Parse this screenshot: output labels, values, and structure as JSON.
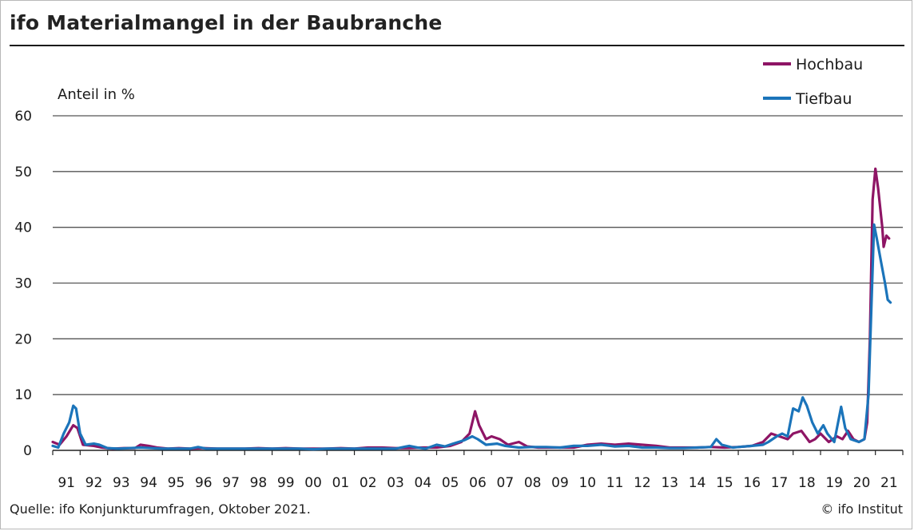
{
  "header": {
    "title": "ifo Materialmangel in der Baubranche"
  },
  "footer": {
    "source": "Quelle: ifo Konjunkturumfragen, Oktober 2021.",
    "credit": "© ifo Institut"
  },
  "colors": {
    "Hochbau": "#8e1565",
    "Tiefbau": "#1b74ba",
    "grid": "#555555"
  },
  "chart_data": {
    "type": "line",
    "title": "ifo Materialmangel in der Baubranche",
    "ylabel": "Anteil in %",
    "xlabel": "",
    "ylim": [
      0,
      60
    ],
    "yticks": [
      0,
      10,
      20,
      30,
      40,
      50,
      60
    ],
    "xlim": [
      1991,
      2022
    ],
    "x_tick_labels": [
      "91",
      "92",
      "93",
      "94",
      "95",
      "96",
      "97",
      "98",
      "99",
      "00",
      "01",
      "02",
      "03",
      "04",
      "05",
      "06",
      "07",
      "08",
      "09",
      "10",
      "11",
      "12",
      "13",
      "14",
      "15",
      "16",
      "17",
      "18",
      "19",
      "20",
      "21"
    ],
    "grid": "horizontal",
    "legend_position": "top-right",
    "series": [
      {
        "name": "Hochbau",
        "color": "#8e1565",
        "points": [
          [
            1991.0,
            1.5
          ],
          [
            1991.25,
            1.0
          ],
          [
            1991.5,
            2.5
          ],
          [
            1991.75,
            4.5
          ],
          [
            1991.9,
            4.0
          ],
          [
            1992.1,
            1.0
          ],
          [
            1992.5,
            0.8
          ],
          [
            1992.8,
            0.5
          ],
          [
            1993.2,
            0.3
          ],
          [
            1993.6,
            0.4
          ],
          [
            1994.0,
            0.4
          ],
          [
            1994.2,
            1.0
          ],
          [
            1994.5,
            0.8
          ],
          [
            1994.8,
            0.5
          ],
          [
            1995.2,
            0.3
          ],
          [
            1995.6,
            0.4
          ],
          [
            1996.0,
            0.3
          ],
          [
            1996.5,
            0.4
          ],
          [
            1997.0,
            0.3
          ],
          [
            1997.5,
            0.3
          ],
          [
            1998.0,
            0.3
          ],
          [
            1998.5,
            0.4
          ],
          [
            1999.0,
            0.3
          ],
          [
            1999.5,
            0.4
          ],
          [
            2000.0,
            0.3
          ],
          [
            2000.5,
            0.3
          ],
          [
            2001.0,
            0.3
          ],
          [
            2001.5,
            0.4
          ],
          [
            2002.0,
            0.3
          ],
          [
            2002.5,
            0.5
          ],
          [
            2003.0,
            0.5
          ],
          [
            2003.5,
            0.4
          ],
          [
            2004.0,
            0.4
          ],
          [
            2004.5,
            0.5
          ],
          [
            2005.0,
            0.5
          ],
          [
            2005.5,
            0.8
          ],
          [
            2005.9,
            1.5
          ],
          [
            2006.2,
            3.0
          ],
          [
            2006.4,
            7.0
          ],
          [
            2006.55,
            4.5
          ],
          [
            2006.8,
            2.0
          ],
          [
            2007.0,
            2.5
          ],
          [
            2007.3,
            2.0
          ],
          [
            2007.6,
            1.0
          ],
          [
            2008.0,
            1.5
          ],
          [
            2008.3,
            0.7
          ],
          [
            2008.7,
            0.5
          ],
          [
            2009.0,
            0.5
          ],
          [
            2009.5,
            0.5
          ],
          [
            2010.0,
            0.5
          ],
          [
            2010.5,
            1.0
          ],
          [
            2011.0,
            1.2
          ],
          [
            2011.5,
            1.0
          ],
          [
            2012.0,
            1.2
          ],
          [
            2012.5,
            1.0
          ],
          [
            2013.0,
            0.8
          ],
          [
            2013.5,
            0.5
          ],
          [
            2014.0,
            0.5
          ],
          [
            2014.5,
            0.5
          ],
          [
            2015.0,
            0.6
          ],
          [
            2015.5,
            0.5
          ],
          [
            2016.0,
            0.6
          ],
          [
            2016.5,
            0.8
          ],
          [
            2016.9,
            1.5
          ],
          [
            2017.2,
            3.0
          ],
          [
            2017.5,
            2.5
          ],
          [
            2017.8,
            2.0
          ],
          [
            2018.0,
            3.0
          ],
          [
            2018.3,
            3.5
          ],
          [
            2018.6,
            1.5
          ],
          [
            2018.8,
            2.0
          ],
          [
            2019.0,
            3.0
          ],
          [
            2019.3,
            1.5
          ],
          [
            2019.6,
            2.5
          ],
          [
            2019.8,
            2.0
          ],
          [
            2020.0,
            3.5
          ],
          [
            2020.2,
            2.0
          ],
          [
            2020.4,
            1.5
          ],
          [
            2020.6,
            2.0
          ],
          [
            2020.7,
            5.0
          ],
          [
            2020.8,
            20.0
          ],
          [
            2020.9,
            45.0
          ],
          [
            2021.0,
            50.5
          ],
          [
            2021.1,
            47.0
          ],
          [
            2021.25,
            40.0
          ],
          [
            2021.3,
            36.5
          ],
          [
            2021.4,
            38.5
          ],
          [
            2021.5,
            38.0
          ]
        ]
      },
      {
        "name": "Tiefbau",
        "color": "#1b74ba",
        "points": [
          [
            1991.0,
            0.8
          ],
          [
            1991.2,
            0.5
          ],
          [
            1991.4,
            3.0
          ],
          [
            1991.6,
            5.0
          ],
          [
            1991.75,
            8.0
          ],
          [
            1991.85,
            7.5
          ],
          [
            1992.0,
            3.0
          ],
          [
            1992.2,
            1.0
          ],
          [
            1992.5,
            1.2
          ],
          [
            1992.7,
            1.0
          ],
          [
            1993.0,
            0.4
          ],
          [
            1993.4,
            0.3
          ],
          [
            1993.8,
            0.4
          ],
          [
            1994.2,
            0.5
          ],
          [
            1994.6,
            0.4
          ],
          [
            1995.0,
            0.3
          ],
          [
            1995.5,
            0.3
          ],
          [
            1996.0,
            0.3
          ],
          [
            1996.3,
            0.6
          ],
          [
            1996.6,
            0.3
          ],
          [
            1997.0,
            0.3
          ],
          [
            1997.5,
            0.3
          ],
          [
            1998.0,
            0.3
          ],
          [
            1998.5,
            0.3
          ],
          [
            1999.0,
            0.3
          ],
          [
            1999.5,
            0.3
          ],
          [
            2000.0,
            0.3
          ],
          [
            2000.5,
            0.2
          ],
          [
            2001.0,
            0.3
          ],
          [
            2001.5,
            0.3
          ],
          [
            2002.0,
            0.3
          ],
          [
            2002.5,
            0.3
          ],
          [
            2003.0,
            0.3
          ],
          [
            2003.5,
            0.3
          ],
          [
            2004.0,
            0.8
          ],
          [
            2004.3,
            0.5
          ],
          [
            2004.6,
            0.3
          ],
          [
            2005.0,
            1.0
          ],
          [
            2005.3,
            0.7
          ],
          [
            2005.6,
            1.2
          ],
          [
            2006.0,
            1.8
          ],
          [
            2006.3,
            2.5
          ],
          [
            2006.5,
            2.0
          ],
          [
            2006.8,
            1.0
          ],
          [
            2007.2,
            1.2
          ],
          [
            2007.5,
            0.8
          ],
          [
            2008.0,
            0.5
          ],
          [
            2008.5,
            0.6
          ],
          [
            2009.0,
            0.6
          ],
          [
            2009.5,
            0.5
          ],
          [
            2010.0,
            0.8
          ],
          [
            2010.5,
            0.8
          ],
          [
            2011.0,
            1.0
          ],
          [
            2011.5,
            0.7
          ],
          [
            2012.0,
            0.8
          ],
          [
            2012.5,
            0.5
          ],
          [
            2013.0,
            0.5
          ],
          [
            2013.5,
            0.4
          ],
          [
            2014.0,
            0.4
          ],
          [
            2014.5,
            0.5
          ],
          [
            2015.0,
            0.6
          ],
          [
            2015.2,
            2.0
          ],
          [
            2015.4,
            1.0
          ],
          [
            2015.8,
            0.5
          ],
          [
            2016.0,
            0.6
          ],
          [
            2016.5,
            0.8
          ],
          [
            2016.9,
            1.0
          ],
          [
            2017.1,
            1.5
          ],
          [
            2017.4,
            2.5
          ],
          [
            2017.6,
            3.0
          ],
          [
            2017.8,
            2.5
          ],
          [
            2018.0,
            7.5
          ],
          [
            2018.2,
            7.0
          ],
          [
            2018.35,
            9.5
          ],
          [
            2018.5,
            8.0
          ],
          [
            2018.7,
            5.0
          ],
          [
            2018.9,
            3.0
          ],
          [
            2019.1,
            4.5
          ],
          [
            2019.25,
            3.0
          ],
          [
            2019.5,
            1.5
          ],
          [
            2019.75,
            7.8
          ],
          [
            2019.9,
            4.0
          ],
          [
            2020.1,
            2.0
          ],
          [
            2020.4,
            1.5
          ],
          [
            2020.6,
            2.0
          ],
          [
            2020.75,
            10.0
          ],
          [
            2020.85,
            25.0
          ],
          [
            2020.95,
            40.5
          ],
          [
            2021.05,
            38.0
          ],
          [
            2021.2,
            34.0
          ],
          [
            2021.35,
            30.0
          ],
          [
            2021.45,
            27.0
          ],
          [
            2021.55,
            26.5
          ]
        ]
      }
    ]
  }
}
